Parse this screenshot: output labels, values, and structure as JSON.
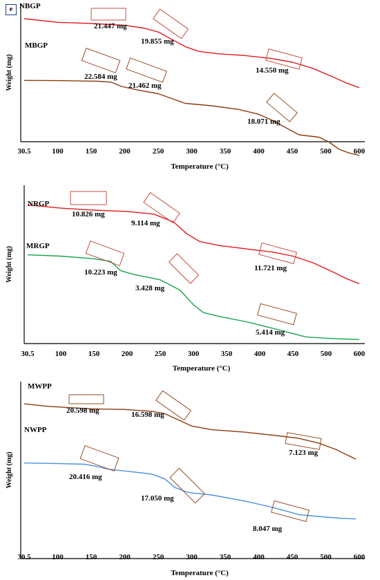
{
  "panel_label": "e",
  "chart_data": [
    {
      "type": "line",
      "xlabel": "Temperature (°C)",
      "ylabel": "Weight (mg)",
      "xlim": [
        30.5,
        600
      ],
      "xticks": [
        "30.5",
        "100",
        "150",
        "200",
        "250",
        "300",
        "350",
        "400",
        "450",
        "500",
        "600"
      ],
      "tick_values": [
        30.5,
        100,
        150,
        200,
        250,
        300,
        350,
        400,
        450,
        500,
        600
      ],
      "series": [
        {
          "name": "NBGP",
          "color": "#e31a1c",
          "x": [
            30.5,
            100,
            150,
            200,
            230,
            250,
            270,
            290,
            310,
            340,
            380,
            420,
            450,
            480,
            520,
            560,
            600
          ],
          "y": [
            0.96,
            0.93,
            0.92,
            0.905,
            0.88,
            0.85,
            0.79,
            0.73,
            0.69,
            0.67,
            0.655,
            0.63,
            0.6,
            0.55,
            0.48,
            0.43,
            0.39
          ]
        },
        {
          "name": "MBGP",
          "color": "#8b3a0f",
          "x": [
            30.5,
            100,
            160,
            180,
            195,
            220,
            250,
            270,
            290,
            330,
            370,
            400,
            420,
            440,
            460,
            490,
            510,
            540,
            570,
            600
          ],
          "y": [
            0.45,
            0.448,
            0.443,
            0.435,
            0.4,
            0.37,
            0.34,
            0.3,
            0.26,
            0.24,
            0.21,
            0.17,
            0.12,
            0.06,
            0.0,
            -0.02,
            -0.06,
            -0.12,
            -0.15,
            -0.17
          ]
        }
      ],
      "annotations": [
        "21.447 mg",
        "19.855 mg",
        "14.550 mg",
        "22.584 mg",
        "21.462 mg",
        "18.071 mg"
      ]
    },
    {
      "type": "line",
      "xlabel": "Temperature (°C)",
      "ylabel": "Weight (mg)",
      "xlim": [
        30.5,
        600
      ],
      "xticks": [
        "30.5",
        "100",
        "150",
        "200",
        "250",
        "300",
        "350",
        "400",
        "450",
        "500",
        "600"
      ],
      "tick_values": [
        30.5,
        100,
        150,
        200,
        250,
        300,
        350,
        400,
        450,
        500,
        600
      ],
      "series": [
        {
          "name": "NRGP",
          "color": "#e31a1c",
          "x": [
            30.5,
            100,
            150,
            200,
            240,
            270,
            290,
            310,
            340,
            380,
            420,
            450,
            480,
            520,
            560,
            600
          ],
          "y": [
            0.94,
            0.915,
            0.9,
            0.89,
            0.87,
            0.81,
            0.72,
            0.66,
            0.63,
            0.605,
            0.58,
            0.55,
            0.5,
            0.43,
            0.38,
            0.34
          ]
        },
        {
          "name": "MRGP",
          "color": "#16a34a",
          "x": [
            30.5,
            100,
            150,
            175,
            190,
            210,
            250,
            280,
            300,
            315,
            340,
            380,
            420,
            450,
            470,
            500,
            540,
            600
          ],
          "y": [
            0.56,
            0.55,
            0.53,
            0.51,
            0.44,
            0.41,
            0.37,
            0.29,
            0.18,
            0.12,
            0.09,
            0.05,
            0.0,
            -0.04,
            -0.065,
            -0.075,
            -0.08,
            -0.085
          ]
        }
      ],
      "annotations": [
        "10.826 mg",
        "9.114 mg",
        "11.721 mg",
        "10.223 mg",
        "3.428 mg",
        "5.414 mg"
      ]
    },
    {
      "type": "line",
      "xlabel": "Temperature (°C)",
      "ylabel": "Weight (mg)",
      "xlim": [
        30.5,
        600
      ],
      "xticks": [
        "30.5",
        "100",
        "150",
        "200",
        "250",
        "300",
        "350",
        "400",
        "450",
        "500",
        "600"
      ],
      "tick_values": [
        30.5,
        100,
        150,
        200,
        250,
        300,
        350,
        400,
        450,
        500,
        600
      ],
      "series": [
        {
          "name": "MWPP",
          "color": "#8b3a0f",
          "x": [
            30.5,
            80,
            150,
            200,
            240,
            260,
            280,
            300,
            330,
            380,
            430,
            460,
            490,
            530,
            560,
            590
          ],
          "y": [
            0.92,
            0.9,
            0.88,
            0.875,
            0.86,
            0.84,
            0.79,
            0.74,
            0.71,
            0.69,
            0.66,
            0.64,
            0.6,
            0.55,
            0.51,
            0.47
          ]
        },
        {
          "name": "NWPP",
          "color": "#4a90e2",
          "x": [
            30.5,
            100,
            140,
            160,
            175,
            200,
            240,
            260,
            275,
            295,
            330,
            380,
            420,
            440,
            460,
            500,
            550,
            590
          ],
          "y": [
            0.44,
            0.435,
            0.43,
            0.41,
            0.39,
            0.375,
            0.35,
            0.31,
            0.24,
            0.2,
            0.18,
            0.13,
            0.08,
            0.05,
            0.02,
            0.0,
            -0.01,
            -0.015
          ]
        }
      ],
      "annotations": [
        "20.598 mg",
        "16.598 mg",
        "7.123 mg",
        "20.416 mg",
        "17.050 mg",
        "8.047 mg"
      ]
    }
  ]
}
